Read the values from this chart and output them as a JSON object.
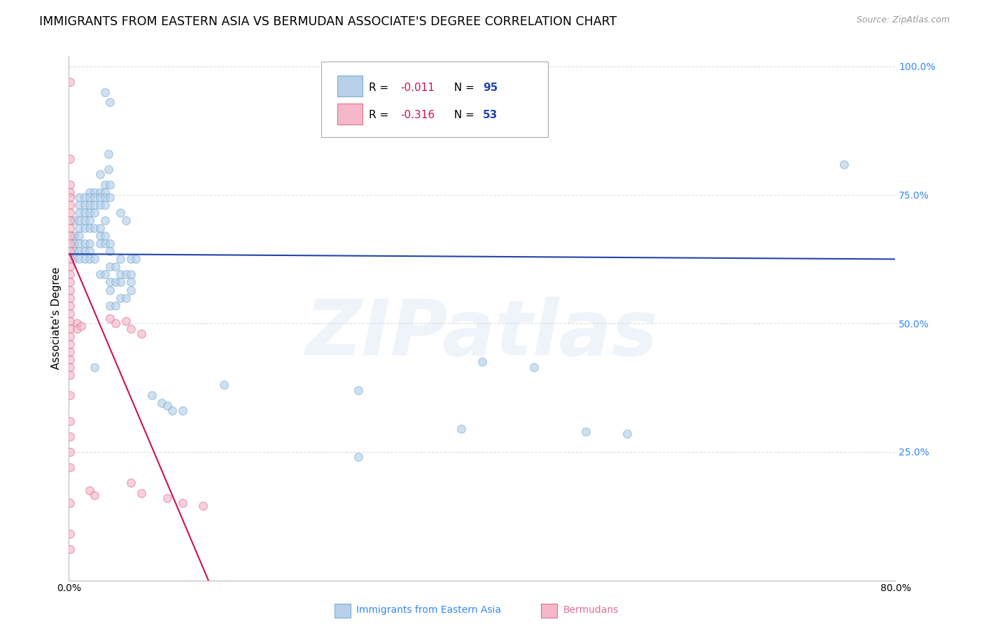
{
  "title": "IMMIGRANTS FROM EASTERN ASIA VS BERMUDAN ASSOCIATE'S DEGREE CORRELATION CHART",
  "source": "Source: ZipAtlas.com",
  "ylabel": "Associate's Degree",
  "watermark": "ZIPatlas",
  "blue_scatter": [
    [
      0.035,
      0.95
    ],
    [
      0.04,
      0.93
    ],
    [
      0.038,
      0.83
    ],
    [
      0.03,
      0.79
    ],
    [
      0.038,
      0.8
    ],
    [
      0.035,
      0.77
    ],
    [
      0.04,
      0.77
    ],
    [
      0.02,
      0.755
    ],
    [
      0.025,
      0.755
    ],
    [
      0.03,
      0.755
    ],
    [
      0.035,
      0.755
    ],
    [
      0.01,
      0.745
    ],
    [
      0.015,
      0.745
    ],
    [
      0.02,
      0.745
    ],
    [
      0.025,
      0.745
    ],
    [
      0.03,
      0.745
    ],
    [
      0.035,
      0.745
    ],
    [
      0.04,
      0.745
    ],
    [
      0.01,
      0.73
    ],
    [
      0.015,
      0.73
    ],
    [
      0.02,
      0.73
    ],
    [
      0.025,
      0.73
    ],
    [
      0.03,
      0.73
    ],
    [
      0.035,
      0.73
    ],
    [
      0.01,
      0.715
    ],
    [
      0.015,
      0.715
    ],
    [
      0.02,
      0.715
    ],
    [
      0.025,
      0.715
    ],
    [
      0.05,
      0.715
    ],
    [
      0.005,
      0.7
    ],
    [
      0.01,
      0.7
    ],
    [
      0.015,
      0.7
    ],
    [
      0.02,
      0.7
    ],
    [
      0.035,
      0.7
    ],
    [
      0.055,
      0.7
    ],
    [
      0.01,
      0.685
    ],
    [
      0.015,
      0.685
    ],
    [
      0.02,
      0.685
    ],
    [
      0.025,
      0.685
    ],
    [
      0.03,
      0.685
    ],
    [
      0.005,
      0.67
    ],
    [
      0.01,
      0.67
    ],
    [
      0.03,
      0.67
    ],
    [
      0.035,
      0.67
    ],
    [
      0.005,
      0.655
    ],
    [
      0.01,
      0.655
    ],
    [
      0.015,
      0.655
    ],
    [
      0.02,
      0.655
    ],
    [
      0.03,
      0.655
    ],
    [
      0.035,
      0.655
    ],
    [
      0.04,
      0.655
    ],
    [
      0.005,
      0.64
    ],
    [
      0.01,
      0.64
    ],
    [
      0.015,
      0.64
    ],
    [
      0.02,
      0.64
    ],
    [
      0.04,
      0.64
    ],
    [
      0.005,
      0.625
    ],
    [
      0.01,
      0.625
    ],
    [
      0.015,
      0.625
    ],
    [
      0.02,
      0.625
    ],
    [
      0.025,
      0.625
    ],
    [
      0.05,
      0.625
    ],
    [
      0.06,
      0.625
    ],
    [
      0.065,
      0.625
    ],
    [
      0.04,
      0.61
    ],
    [
      0.045,
      0.61
    ],
    [
      0.03,
      0.595
    ],
    [
      0.035,
      0.595
    ],
    [
      0.05,
      0.595
    ],
    [
      0.055,
      0.595
    ],
    [
      0.06,
      0.595
    ],
    [
      0.04,
      0.58
    ],
    [
      0.045,
      0.58
    ],
    [
      0.05,
      0.58
    ],
    [
      0.06,
      0.58
    ],
    [
      0.04,
      0.565
    ],
    [
      0.06,
      0.565
    ],
    [
      0.05,
      0.55
    ],
    [
      0.055,
      0.55
    ],
    [
      0.04,
      0.535
    ],
    [
      0.045,
      0.535
    ],
    [
      0.025,
      0.415
    ],
    [
      0.4,
      0.425
    ],
    [
      0.45,
      0.415
    ],
    [
      0.15,
      0.38
    ],
    [
      0.28,
      0.37
    ],
    [
      0.08,
      0.36
    ],
    [
      0.09,
      0.345
    ],
    [
      0.095,
      0.34
    ],
    [
      0.1,
      0.33
    ],
    [
      0.11,
      0.33
    ],
    [
      0.38,
      0.295
    ],
    [
      0.5,
      0.29
    ],
    [
      0.54,
      0.285
    ],
    [
      0.28,
      0.24
    ],
    [
      0.75,
      0.81
    ]
  ],
  "pink_scatter": [
    [
      0.001,
      0.97
    ],
    [
      0.001,
      0.82
    ],
    [
      0.001,
      0.77
    ],
    [
      0.001,
      0.755
    ],
    [
      0.001,
      0.745
    ],
    [
      0.001,
      0.73
    ],
    [
      0.001,
      0.715
    ],
    [
      0.001,
      0.7
    ],
    [
      0.001,
      0.685
    ],
    [
      0.001,
      0.67
    ],
    [
      0.001,
      0.655
    ],
    [
      0.001,
      0.64
    ],
    [
      0.001,
      0.625
    ],
    [
      0.001,
      0.61
    ],
    [
      0.001,
      0.595
    ],
    [
      0.001,
      0.58
    ],
    [
      0.001,
      0.565
    ],
    [
      0.001,
      0.55
    ],
    [
      0.001,
      0.535
    ],
    [
      0.001,
      0.52
    ],
    [
      0.001,
      0.505
    ],
    [
      0.001,
      0.49
    ],
    [
      0.001,
      0.475
    ],
    [
      0.001,
      0.46
    ],
    [
      0.001,
      0.445
    ],
    [
      0.001,
      0.43
    ],
    [
      0.001,
      0.415
    ],
    [
      0.001,
      0.4
    ],
    [
      0.001,
      0.36
    ],
    [
      0.001,
      0.31
    ],
    [
      0.001,
      0.28
    ],
    [
      0.001,
      0.25
    ],
    [
      0.001,
      0.22
    ],
    [
      0.001,
      0.15
    ],
    [
      0.001,
      0.09
    ],
    [
      0.001,
      0.06
    ],
    [
      0.008,
      0.5
    ],
    [
      0.008,
      0.49
    ],
    [
      0.012,
      0.495
    ],
    [
      0.02,
      0.175
    ],
    [
      0.025,
      0.165
    ],
    [
      0.06,
      0.19
    ],
    [
      0.07,
      0.17
    ],
    [
      0.095,
      0.16
    ],
    [
      0.11,
      0.15
    ],
    [
      0.13,
      0.145
    ],
    [
      0.045,
      0.5
    ],
    [
      0.06,
      0.49
    ],
    [
      0.07,
      0.48
    ],
    [
      0.04,
      0.51
    ],
    [
      0.055,
      0.505
    ]
  ],
  "blue_line_x": [
    0.0,
    0.8
  ],
  "blue_line_y": [
    0.635,
    0.625
  ],
  "pink_line_x": [
    0.001,
    0.135
  ],
  "pink_line_y": [
    0.635,
    0.0
  ],
  "xlim": [
    0.0,
    0.8
  ],
  "ylim": [
    0.0,
    1.02
  ],
  "scatter_size": 70,
  "scatter_alpha": 0.65,
  "scatter_linewidth": 0.8,
  "blue_face": "#b8d0ea",
  "blue_edge": "#7aadd4",
  "pink_face": "#f5b8c8",
  "pink_edge": "#e07090",
  "trend_blue_color": "#2244aa",
  "trend_pink_color": "#cc1155",
  "grid_color": "#c8c8c8",
  "grid_style": "--",
  "grid_alpha": 0.6,
  "title_fontsize": 12.5,
  "axis_label_fontsize": 11,
  "tick_label_fontsize": 10,
  "right_tick_color": "#3388ff",
  "watermark_color": "#ccd8f0",
  "watermark_fontsize": 80,
  "watermark_alpha": 0.3
}
